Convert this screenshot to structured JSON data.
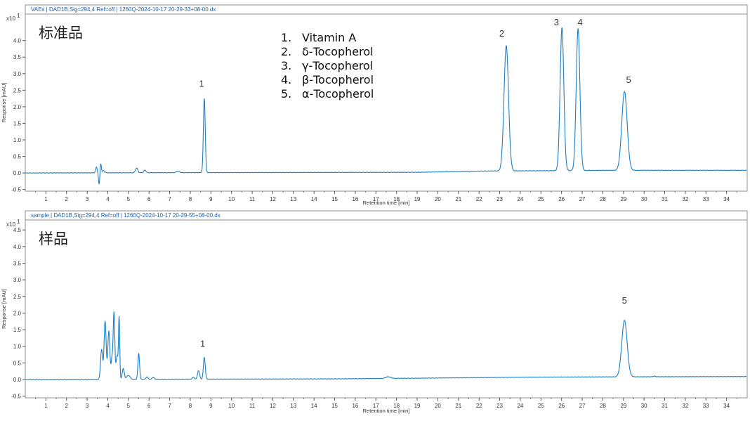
{
  "chart_data": [
    {
      "type": "line",
      "header": "VAEs  |  DAD1B,Sig=294,4    Ref=off  |  1260Q-2024-10-17 20-29-33+08-00.dx",
      "big_label": "标准品",
      "multiplier": "x10",
      "multiplier_exp": "1",
      "xlabel": "Retention time [min]",
      "ylabel": "Response [mAU]",
      "xlim": [
        0,
        35
      ],
      "ylim": [
        -0.55,
        4.8
      ],
      "xticks": [
        1,
        2,
        3,
        4,
        5,
        6,
        7,
        8,
        9,
        10,
        11,
        12,
        13,
        14,
        15,
        16,
        17,
        18,
        19,
        20,
        21,
        22,
        23,
        24,
        25,
        26,
        27,
        28,
        29,
        30,
        31,
        32,
        33,
        34
      ],
      "yticks": [
        -0.5,
        0.0,
        0.5,
        1.0,
        1.5,
        2.0,
        2.5,
        3.0,
        3.5,
        4.0
      ],
      "ytick_labels": [
        "-0.5",
        "0.0",
        "0.5",
        "1.0",
        "1.5",
        "2.0",
        "2.5",
        "3.0",
        "3.5",
        "4.0"
      ],
      "baseline": {
        "x": [
          0,
          8,
          19,
          22.5,
          26,
          28,
          35
        ],
        "y": [
          0.0,
          0.01,
          0.02,
          0.06,
          0.07,
          0.08,
          0.08
        ]
      },
      "peaks": [
        {
          "rt": 3.45,
          "h": 0.17,
          "w": 0.04
        },
        {
          "rt": 3.58,
          "h": -0.35,
          "w": 0.03
        },
        {
          "rt": 3.66,
          "h": 0.28,
          "w": 0.03
        },
        {
          "rt": 3.8,
          "h": 0.07,
          "w": 0.05
        },
        {
          "rt": 5.4,
          "h": 0.14,
          "w": 0.06
        },
        {
          "rt": 5.8,
          "h": 0.08,
          "w": 0.05
        },
        {
          "rt": 7.4,
          "h": 0.04,
          "w": 0.08
        },
        {
          "rt": 8.68,
          "h": 2.24,
          "w": 0.045
        },
        {
          "rt": 23.32,
          "h": 3.78,
          "w": 0.11
        },
        {
          "rt": 26.02,
          "h": 4.32,
          "w": 0.09
        },
        {
          "rt": 26.8,
          "h": 4.28,
          "w": 0.09
        },
        {
          "rt": 29.05,
          "h": 2.38,
          "w": 0.13
        }
      ],
      "peak_labels": [
        {
          "text": "1",
          "rt": 8.55,
          "y": 2.6
        },
        {
          "text": "2",
          "rt": 23.1,
          "y": 4.12
        },
        {
          "text": "3",
          "rt": 25.75,
          "y": 4.46
        },
        {
          "text": "4",
          "rt": 26.9,
          "y": 4.46
        },
        {
          "text": "5",
          "rt": 29.25,
          "y": 2.72
        }
      ],
      "legend": [
        {
          "num": "1.",
          "name": "Vitamin A"
        },
        {
          "num": "2.",
          "name": "δ-Tocopherol"
        },
        {
          "num": "3.",
          "name": "γ-Tocopherol"
        },
        {
          "num": "4.",
          "name": "β-Tocopherol"
        },
        {
          "num": "5.",
          "name": "α-Tocopherol"
        }
      ],
      "line_color": "#1a7fc8",
      "grid": false
    },
    {
      "type": "line",
      "header": "sample  |  DAD1B,Sig=294,4    Ref=off  |  1260Q-2024-10-17 20-29-55+08-00.dx",
      "big_label": "样品",
      "multiplier": "x10",
      "multiplier_exp": "1",
      "xlabel": "Retention time [min]",
      "ylabel": "Response [mAU]",
      "xlim": [
        0,
        35
      ],
      "ylim": [
        -0.55,
        4.8
      ],
      "xticks": [
        1,
        2,
        3,
        4,
        5,
        6,
        7,
        8,
        9,
        10,
        11,
        12,
        13,
        14,
        15,
        16,
        17,
        18,
        19,
        20,
        21,
        22,
        23,
        24,
        25,
        26,
        27,
        28,
        29,
        30,
        31,
        32,
        33,
        34
      ],
      "yticks": [
        -0.5,
        0.0,
        0.5,
        1.0,
        1.5,
        2.0,
        2.5,
        3.0,
        3.5,
        4.0,
        4.5
      ],
      "ytick_labels": [
        "-0.5",
        "0.0",
        "0.5",
        "1.0",
        "1.5",
        "2.0",
        "2.5",
        "3.0",
        "3.5",
        "4.0",
        "4.5"
      ],
      "baseline": {
        "x": [
          0,
          8,
          15,
          19,
          24,
          28,
          35
        ],
        "y": [
          0.0,
          0.01,
          0.02,
          0.04,
          0.07,
          0.08,
          0.09
        ]
      },
      "peaks": [
        {
          "rt": 3.7,
          "h": 0.9,
          "w": 0.05
        },
        {
          "rt": 3.87,
          "h": 1.75,
          "w": 0.05
        },
        {
          "rt": 4.05,
          "h": 1.45,
          "w": 0.05
        },
        {
          "rt": 4.2,
          "h": 0.6,
          "w": 0.04
        },
        {
          "rt": 4.3,
          "h": 2.0,
          "w": 0.04
        },
        {
          "rt": 4.45,
          "h": 0.7,
          "w": 0.05
        },
        {
          "rt": 4.55,
          "h": 1.8,
          "w": 0.03
        },
        {
          "rt": 4.75,
          "h": 0.32,
          "w": 0.05
        },
        {
          "rt": 5.0,
          "h": 0.12,
          "w": 0.08
        },
        {
          "rt": 5.5,
          "h": 0.78,
          "w": 0.04
        },
        {
          "rt": 5.9,
          "h": 0.07,
          "w": 0.05
        },
        {
          "rt": 6.2,
          "h": 0.06,
          "w": 0.05
        },
        {
          "rt": 8.15,
          "h": 0.06,
          "w": 0.05
        },
        {
          "rt": 8.4,
          "h": 0.26,
          "w": 0.05
        },
        {
          "rt": 8.68,
          "h": 0.66,
          "w": 0.045
        },
        {
          "rt": 17.6,
          "h": 0.05,
          "w": 0.12
        },
        {
          "rt": 29.05,
          "h": 1.7,
          "w": 0.13
        },
        {
          "rt": 30.5,
          "h": 0.02,
          "w": 0.05
        }
      ],
      "peak_labels": [
        {
          "text": "1",
          "rt": 8.6,
          "y": 0.98
        },
        {
          "text": "5",
          "rt": 29.05,
          "y": 2.28
        }
      ],
      "legend": [],
      "line_color": "#1a7fc8",
      "grid": false
    }
  ]
}
